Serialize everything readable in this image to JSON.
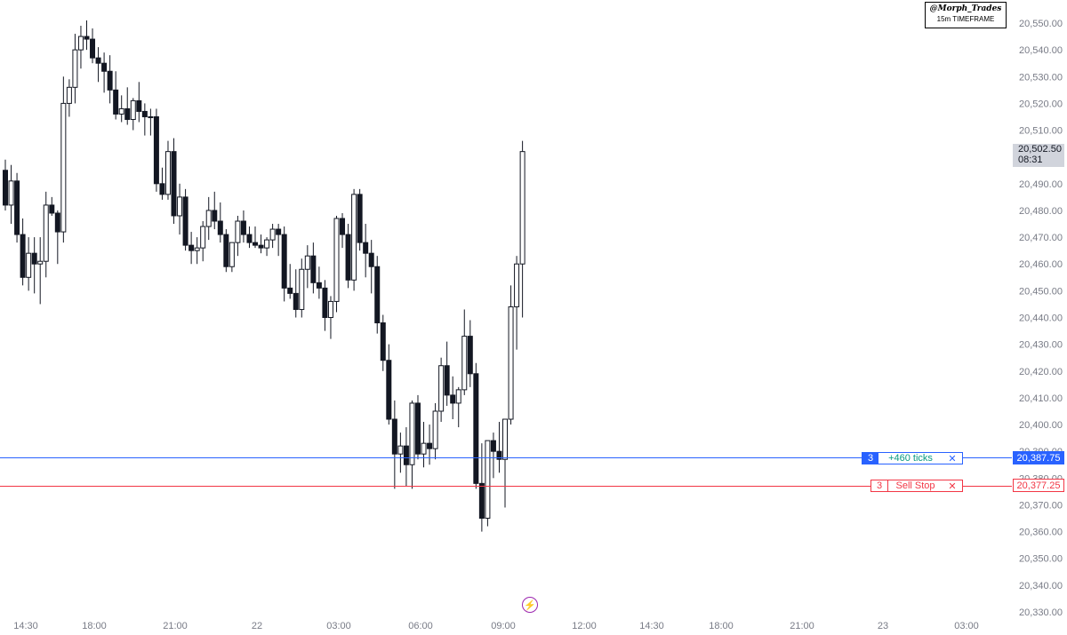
{
  "watermark": {
    "handle": "@Morph_Trades",
    "timeframe": "15m TIMEFRAME"
  },
  "last_price": {
    "value": "20,502.50",
    "countdown": "08:31"
  },
  "orders": {
    "take_profit": {
      "qty": "3",
      "text": "+460 ticks",
      "close": "✕",
      "price": "20,387.75"
    },
    "sell_stop": {
      "qty": "3",
      "text": "Sell Stop",
      "close": "✕",
      "price": "20,377.25"
    }
  },
  "icons": {
    "flash": "flash-icon"
  },
  "colors": {
    "order_line": "#2962ff",
    "stop_line": "#f23645",
    "candle_down": "#131722",
    "candle_up": "#ffffff",
    "axis_text": "#787b86",
    "last_price_bg": "#d1d4dc",
    "flash": "#9c27b0"
  },
  "chart_data": {
    "type": "candlestick",
    "timeframe": "15m",
    "y_ticks": [
      20330,
      20340,
      20350,
      20360,
      20370,
      20380,
      20390,
      20400,
      20410,
      20420,
      20430,
      20440,
      20450,
      20460,
      20470,
      20480,
      20490,
      20500,
      20510,
      20520,
      20530,
      20540,
      20550
    ],
    "y_tick_labels": [
      "20,330.00",
      "20,340.00",
      "20,350.00",
      "20,360.00",
      "20,370.00",
      "20,380.00",
      "20,390.00",
      "20,400.00",
      "20,410.00",
      "20,420.00",
      "20,430.00",
      "20,440.00",
      "20,450.00",
      "20,460.00",
      "20,470.00",
      "20,480.00",
      "20,490.00",
      "20,500.00",
      "20,510.00",
      "20,520.00",
      "20,530.00",
      "20,540.00",
      "20,550.00"
    ],
    "ylim": [
      20327,
      20555
    ],
    "x_labels": [
      "14:30",
      "18:00",
      "21:00",
      "22",
      "03:00",
      "06:00",
      "09:00",
      "12:00",
      "14:30",
      "18:00",
      "21:00",
      "23",
      "03:00"
    ],
    "candles": [
      [
        20495,
        20499,
        20480,
        20482
      ],
      [
        20482,
        20497,
        20475,
        20491
      ],
      [
        20491,
        20494,
        20468,
        20471
      ],
      [
        20471,
        20477,
        20452,
        20455
      ],
      [
        20455,
        20470,
        20450,
        20464
      ],
      [
        20464,
        20470,
        20449,
        20460
      ],
      [
        20460,
        20470,
        20445,
        20461
      ],
      [
        20461,
        20487,
        20455,
        20482
      ],
      [
        20482,
        20485,
        20478,
        20479
      ],
      [
        20479,
        20480,
        20460,
        20472
      ],
      [
        20472,
        20530,
        20468,
        20520
      ],
      [
        20520,
        20529,
        20515,
        20526
      ],
      [
        20526,
        20546,
        20520,
        20540
      ],
      [
        20540,
        20549,
        20533,
        20545
      ],
      [
        20545,
        20551,
        20540,
        20544
      ],
      [
        20544,
        20548,
        20535,
        20537
      ],
      [
        20537,
        20541,
        20528,
        20535
      ],
      [
        20535,
        20539,
        20524,
        20532
      ],
      [
        20532,
        20538,
        20520,
        20525
      ],
      [
        20525,
        20532,
        20514,
        20516
      ],
      [
        20516,
        20523,
        20513,
        20518
      ],
      [
        20518,
        20526,
        20512,
        20514
      ],
      [
        20514,
        20522,
        20510,
        20521
      ],
      [
        20521,
        20528,
        20513,
        20517
      ],
      [
        20517,
        20520,
        20508,
        20515
      ],
      [
        20515,
        20518,
        20508,
        20515
      ],
      [
        20515,
        20518,
        20487,
        20490
      ],
      [
        20490,
        20496,
        20484,
        20486
      ],
      [
        20486,
        20506,
        20484,
        20502
      ],
      [
        20502,
        20507,
        20475,
        20478
      ],
      [
        20478,
        20490,
        20471,
        20485
      ],
      [
        20485,
        20488,
        20465,
        20467
      ],
      [
        20467,
        20472,
        20460,
        20465
      ],
      [
        20465,
        20470,
        20460,
        20466
      ],
      [
        20466,
        20476,
        20461,
        20474
      ],
      [
        20474,
        20485,
        20469,
        20480
      ],
      [
        20480,
        20487,
        20473,
        20476
      ],
      [
        20476,
        20483,
        20468,
        20471
      ],
      [
        20471,
        20473,
        20457,
        20459
      ],
      [
        20459,
        20468,
        20457,
        20468
      ],
      [
        20468,
        20478,
        20463,
        20476
      ],
      [
        20476,
        20480,
        20468,
        20471
      ],
      [
        20471,
        20474,
        20466,
        20468
      ],
      [
        20468,
        20474,
        20466,
        20467
      ],
      [
        20467,
        20471,
        20464,
        20466
      ],
      [
        20466,
        20470,
        20463,
        20469
      ],
      [
        20469,
        20475,
        20466,
        20473
      ],
      [
        20473,
        20475,
        20463,
        20471
      ],
      [
        20471,
        20474,
        20446,
        20451
      ],
      [
        20451,
        20460,
        20447,
        20449
      ],
      [
        20449,
        20458,
        20440,
        20443
      ],
      [
        20443,
        20462,
        20440,
        20458
      ],
      [
        20458,
        20467,
        20451,
        20463
      ],
      [
        20463,
        20468,
        20449,
        20453
      ],
      [
        20453,
        20459,
        20447,
        20451
      ],
      [
        20451,
        20454,
        20435,
        20440
      ],
      [
        20440,
        20448,
        20432,
        20446
      ],
      [
        20446,
        20478,
        20442,
        20477
      ],
      [
        20477,
        20479,
        20466,
        20471
      ],
      [
        20471,
        20475,
        20451,
        20454
      ],
      [
        20454,
        20488,
        20450,
        20486
      ],
      [
        20486,
        20488,
        20465,
        20468
      ],
      [
        20468,
        20475,
        20455,
        20464
      ],
      [
        20464,
        20469,
        20449,
        20459
      ],
      [
        20459,
        20463,
        20434,
        20438
      ],
      [
        20438,
        20441,
        20420,
        20424
      ],
      [
        20424,
        20430,
        20400,
        20402
      ],
      [
        20402,
        20409,
        20376,
        20389
      ],
      [
        20389,
        20397,
        20382,
        20392
      ],
      [
        20392,
        20399,
        20377,
        20385
      ],
      [
        20385,
        20409,
        20376,
        20408
      ],
      [
        20408,
        20411,
        20387,
        20389
      ],
      [
        20389,
        20401,
        20384,
        20393
      ],
      [
        20393,
        20400,
        20385,
        20391
      ],
      [
        20391,
        20408,
        20387,
        20405
      ],
      [
        20405,
        20425,
        20401,
        20422
      ],
      [
        20422,
        20431,
        20407,
        20411
      ],
      [
        20411,
        20418,
        20402,
        20408
      ],
      [
        20408,
        20414,
        20399,
        20413
      ],
      [
        20413,
        20443,
        20411,
        20433
      ],
      [
        20433,
        20439,
        20414,
        20419
      ],
      [
        20419,
        20423,
        20376,
        20378
      ],
      [
        20378,
        20393,
        20360,
        20365
      ],
      [
        20365,
        20393,
        20362,
        20394
      ],
      [
        20394,
        20397,
        20380,
        20390
      ],
      [
        20390,
        20401,
        20382,
        20387
      ],
      [
        20387,
        20402,
        20369,
        20402
      ],
      [
        20402,
        20452,
        20400,
        20444
      ],
      [
        20444,
        20463,
        20428,
        20460
      ],
      [
        20460,
        20506,
        20440,
        20502
      ]
    ],
    "order_levels": [
      {
        "label": "+460 ticks",
        "qty": 3,
        "price": 20387.75
      },
      {
        "label": "Sell Stop",
        "qty": 3,
        "price": 20377.25
      }
    ],
    "last_price": 20502.5
  }
}
